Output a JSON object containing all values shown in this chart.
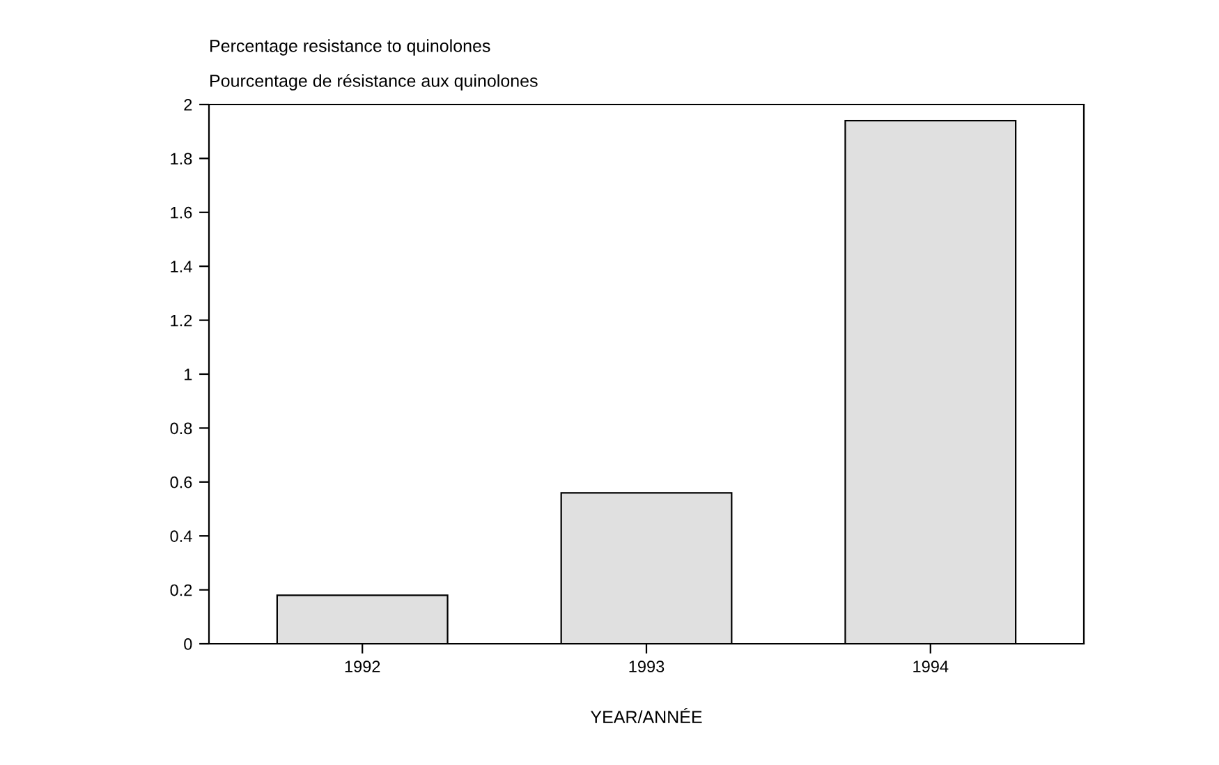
{
  "chart_data": {
    "type": "bar",
    "title": "Percentage resistance to quinolones",
    "subtitle": "Pourcentage de résistance aux quinolones",
    "xlabel": "YEAR/ANNÉE",
    "categories": [
      "1992",
      "1993",
      "1994"
    ],
    "values": [
      0.18,
      0.56,
      1.94
    ],
    "color": "#e0e0e0",
    "ylim": [
      0,
      2
    ],
    "yticks": [
      0,
      0.2,
      0.4,
      0.6,
      0.8,
      1,
      1.2,
      1.4,
      1.6,
      1.8,
      2
    ],
    "grid": false
  }
}
